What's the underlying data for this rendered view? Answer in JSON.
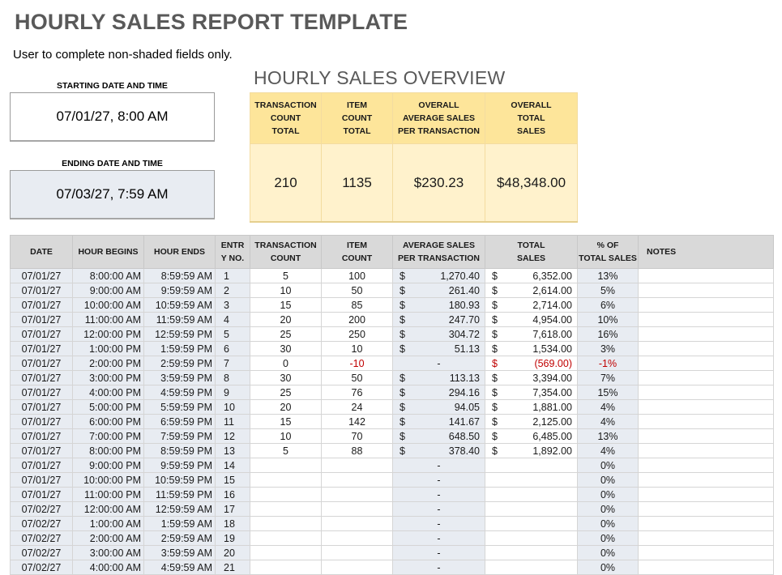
{
  "header": {
    "title": "HOURLY SALES REPORT TEMPLATE",
    "subtitle": "User to complete non-shaded fields only."
  },
  "dates": {
    "start_label": "STARTING DATE AND TIME",
    "start_value": "07/01/27, 8:00 AM",
    "end_label": "ENDING DATE AND TIME",
    "end_value": "07/03/27, 7:59 AM"
  },
  "overview": {
    "title": "HOURLY SALES OVERVIEW",
    "headers": [
      [
        "TRANSACTION",
        "COUNT",
        "TOTAL"
      ],
      [
        "ITEM",
        "COUNT",
        "TOTAL"
      ],
      [
        "OVERALL",
        "AVERAGE SALES",
        "PER TRANSACTION"
      ],
      [
        "OVERALL",
        "TOTAL",
        "SALES"
      ]
    ],
    "values": [
      "210",
      "1135",
      "$230.23",
      "$48,348.00"
    ]
  },
  "table": {
    "headers": {
      "date": "DATE",
      "hour_begins": "HOUR BEGINS",
      "hour_ends": "HOUR ENDS",
      "entry_1": "ENTR",
      "entry_2": "Y NO.",
      "txn_1": "TRANSACTION",
      "txn_2": "COUNT",
      "item_1": "ITEM",
      "item_2": "COUNT",
      "avg_1": "AVERAGE SALES",
      "avg_2": "PER TRANSACTION",
      "total_1": "TOTAL",
      "total_2": "SALES",
      "pct_1": "% OF",
      "pct_2": "TOTAL SALES",
      "notes": "NOTES"
    },
    "rows": [
      {
        "date": "07/01/27",
        "begin": "8:00:00 AM",
        "end": "8:59:59 AM",
        "entry": "1",
        "txn": "5",
        "items": "100",
        "avg_cur": "$",
        "avg": "1,270.40",
        "tot_cur": "$",
        "total": "6,352.00",
        "pct": "13%",
        "notes": ""
      },
      {
        "date": "07/01/27",
        "begin": "9:00:00 AM",
        "end": "9:59:59 AM",
        "entry": "2",
        "txn": "10",
        "items": "50",
        "avg_cur": "$",
        "avg": "261.40",
        "tot_cur": "$",
        "total": "2,614.00",
        "pct": "5%",
        "notes": ""
      },
      {
        "date": "07/01/27",
        "begin": "10:00:00 AM",
        "end": "10:59:59 AM",
        "entry": "3",
        "txn": "15",
        "items": "85",
        "avg_cur": "$",
        "avg": "180.93",
        "tot_cur": "$",
        "total": "2,714.00",
        "pct": "6%",
        "notes": ""
      },
      {
        "date": "07/01/27",
        "begin": "11:00:00 AM",
        "end": "11:59:59 AM",
        "entry": "4",
        "txn": "20",
        "items": "200",
        "avg_cur": "$",
        "avg": "247.70",
        "tot_cur": "$",
        "total": "4,954.00",
        "pct": "10%",
        "notes": ""
      },
      {
        "date": "07/01/27",
        "begin": "12:00:00 PM",
        "end": "12:59:59 PM",
        "entry": "5",
        "txn": "25",
        "items": "250",
        "avg_cur": "$",
        "avg": "304.72",
        "tot_cur": "$",
        "total": "7,618.00",
        "pct": "16%",
        "notes": ""
      },
      {
        "date": "07/01/27",
        "begin": "1:00:00 PM",
        "end": "1:59:59 PM",
        "entry": "6",
        "txn": "30",
        "items": "10",
        "avg_cur": "$",
        "avg": "51.13",
        "tot_cur": "$",
        "total": "1,534.00",
        "pct": "3%",
        "notes": ""
      },
      {
        "date": "07/01/27",
        "begin": "2:00:00 PM",
        "end": "2:59:59 PM",
        "entry": "7",
        "txn": "0",
        "items": "-10",
        "avg_cur": "",
        "avg": "-",
        "tot_cur": "$",
        "total": "(569.00)",
        "pct": "-1%",
        "notes": "",
        "negative": true
      },
      {
        "date": "07/01/27",
        "begin": "3:00:00 PM",
        "end": "3:59:59 PM",
        "entry": "8",
        "txn": "30",
        "items": "50",
        "avg_cur": "$",
        "avg": "113.13",
        "tot_cur": "$",
        "total": "3,394.00",
        "pct": "7%",
        "notes": ""
      },
      {
        "date": "07/01/27",
        "begin": "4:00:00 PM",
        "end": "4:59:59 PM",
        "entry": "9",
        "txn": "25",
        "items": "76",
        "avg_cur": "$",
        "avg": "294.16",
        "tot_cur": "$",
        "total": "7,354.00",
        "pct": "15%",
        "notes": ""
      },
      {
        "date": "07/01/27",
        "begin": "5:00:00 PM",
        "end": "5:59:59 PM",
        "entry": "10",
        "txn": "20",
        "items": "24",
        "avg_cur": "$",
        "avg": "94.05",
        "tot_cur": "$",
        "total": "1,881.00",
        "pct": "4%",
        "notes": ""
      },
      {
        "date": "07/01/27",
        "begin": "6:00:00 PM",
        "end": "6:59:59 PM",
        "entry": "11",
        "txn": "15",
        "items": "142",
        "avg_cur": "$",
        "avg": "141.67",
        "tot_cur": "$",
        "total": "2,125.00",
        "pct": "4%",
        "notes": ""
      },
      {
        "date": "07/01/27",
        "begin": "7:00:00 PM",
        "end": "7:59:59 PM",
        "entry": "12",
        "txn": "10",
        "items": "70",
        "avg_cur": "$",
        "avg": "648.50",
        "tot_cur": "$",
        "total": "6,485.00",
        "pct": "13%",
        "notes": ""
      },
      {
        "date": "07/01/27",
        "begin": "8:00:00 PM",
        "end": "8:59:59 PM",
        "entry": "13",
        "txn": "5",
        "items": "88",
        "avg_cur": "$",
        "avg": "378.40",
        "tot_cur": "$",
        "total": "1,892.00",
        "pct": "4%",
        "notes": ""
      },
      {
        "date": "07/01/27",
        "begin": "9:00:00 PM",
        "end": "9:59:59 PM",
        "entry": "14",
        "txn": "",
        "items": "",
        "avg_cur": "",
        "avg": "-",
        "tot_cur": "",
        "total": "",
        "pct": "0%",
        "notes": ""
      },
      {
        "date": "07/01/27",
        "begin": "10:00:00 PM",
        "end": "10:59:59 PM",
        "entry": "15",
        "txn": "",
        "items": "",
        "avg_cur": "",
        "avg": "-",
        "tot_cur": "",
        "total": "",
        "pct": "0%",
        "notes": ""
      },
      {
        "date": "07/01/27",
        "begin": "11:00:00 PM",
        "end": "11:59:59 PM",
        "entry": "16",
        "txn": "",
        "items": "",
        "avg_cur": "",
        "avg": "-",
        "tot_cur": "",
        "total": "",
        "pct": "0%",
        "notes": ""
      },
      {
        "date": "07/02/27",
        "begin": "12:00:00 AM",
        "end": "12:59:59 AM",
        "entry": "17",
        "txn": "",
        "items": "",
        "avg_cur": "",
        "avg": "-",
        "tot_cur": "",
        "total": "",
        "pct": "0%",
        "notes": ""
      },
      {
        "date": "07/02/27",
        "begin": "1:00:00 AM",
        "end": "1:59:59 AM",
        "entry": "18",
        "txn": "",
        "items": "",
        "avg_cur": "",
        "avg": "-",
        "tot_cur": "",
        "total": "",
        "pct": "0%",
        "notes": ""
      },
      {
        "date": "07/02/27",
        "begin": "2:00:00 AM",
        "end": "2:59:59 AM",
        "entry": "19",
        "txn": "",
        "items": "",
        "avg_cur": "",
        "avg": "-",
        "tot_cur": "",
        "total": "",
        "pct": "0%",
        "notes": ""
      },
      {
        "date": "07/02/27",
        "begin": "3:00:00 AM",
        "end": "3:59:59 AM",
        "entry": "20",
        "txn": "",
        "items": "",
        "avg_cur": "",
        "avg": "-",
        "tot_cur": "",
        "total": "",
        "pct": "0%",
        "notes": ""
      },
      {
        "date": "07/02/27",
        "begin": "4:00:00 AM",
        "end": "4:59:59 AM",
        "entry": "21",
        "txn": "",
        "items": "",
        "avg_cur": "",
        "avg": "-",
        "tot_cur": "",
        "total": "",
        "pct": "0%",
        "notes": ""
      }
    ]
  },
  "colors": {
    "shaded": "#e8ecf2",
    "overview_header": "#fde59a",
    "overview_values": "#fff2cc",
    "negative": "#c00000",
    "title": "#595959"
  }
}
